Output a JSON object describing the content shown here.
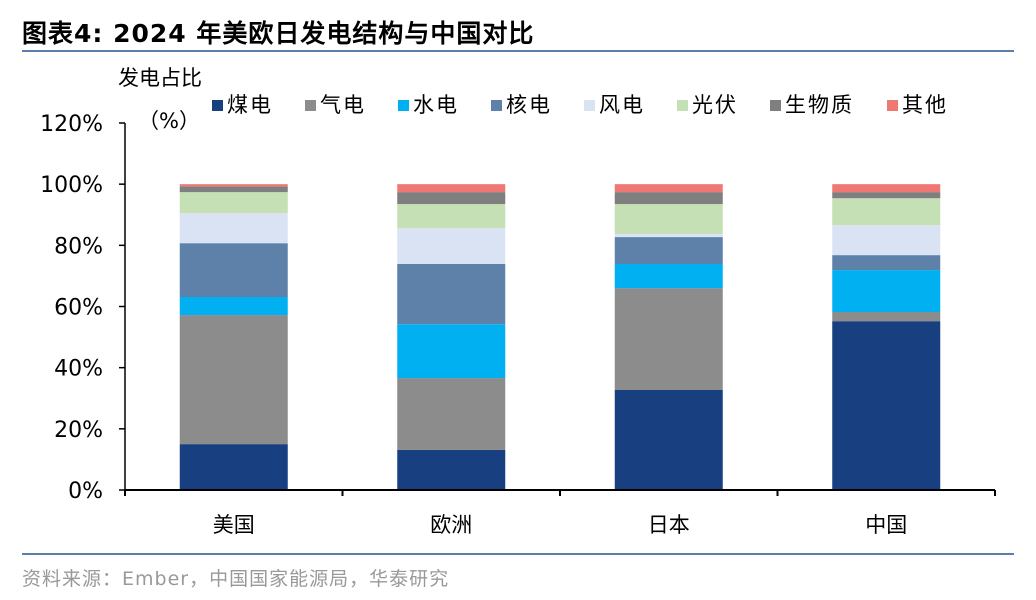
{
  "title": "图表4:   2024 年美欧日发电结构与中国对比",
  "source": "资料来源：Ember，中国国家能源局，华泰研究",
  "chart_data": {
    "type": "bar",
    "stacked": true,
    "ylabel": "发电占比",
    "yunit": "（%）",
    "ylim": [
      0,
      120
    ],
    "yticks": [
      "0%",
      "20%",
      "40%",
      "60%",
      "80%",
      "100%",
      "120%"
    ],
    "grid": false,
    "legend_position": "top",
    "categories": [
      "美国",
      "欧洲",
      "日本",
      "中国"
    ],
    "series": [
      {
        "name": "煤电",
        "color": "#183f80",
        "values": [
          15.0,
          13.1,
          32.7,
          55.2
        ]
      },
      {
        "name": "气电",
        "color": "#8c8c8c",
        "values": [
          42.2,
          23.5,
          33.3,
          3.0
        ]
      },
      {
        "name": "水电",
        "color": "#00b0f0",
        "values": [
          5.9,
          17.6,
          7.9,
          13.7
        ]
      },
      {
        "name": "核电",
        "color": "#5e81aa",
        "values": [
          17.6,
          19.7,
          8.8,
          4.9
        ]
      },
      {
        "name": "风电",
        "color": "#dae3f3",
        "values": [
          9.8,
          11.7,
          1.0,
          9.8
        ]
      },
      {
        "name": "光伏",
        "color": "#c5e0b4",
        "values": [
          6.9,
          7.9,
          9.8,
          8.8
        ]
      },
      {
        "name": "生物质",
        "color": "#7f7f7f",
        "values": [
          1.9,
          3.9,
          3.9,
          2.0
        ]
      },
      {
        "name": "其他",
        "color": "#f07874",
        "values": [
          0.7,
          2.6,
          2.6,
          2.6
        ]
      }
    ]
  }
}
